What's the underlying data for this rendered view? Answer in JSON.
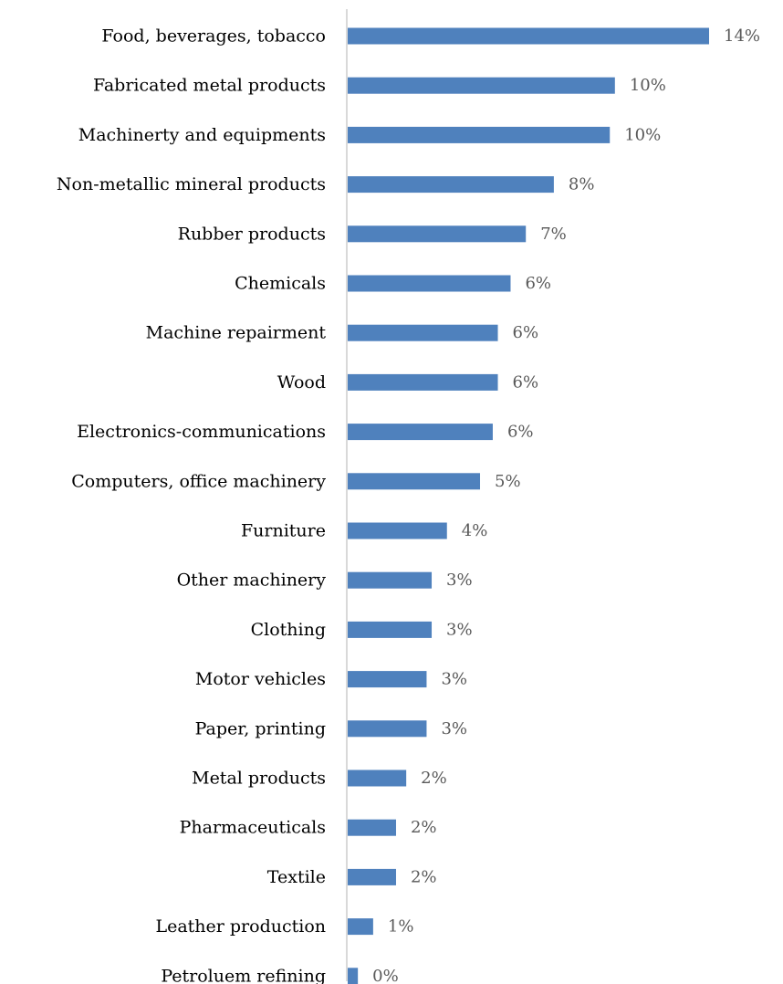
{
  "chart_data": {
    "type": "bar",
    "orientation": "horizontal",
    "categories": [
      "Food, beverages, tobacco",
      "Fabricated metal products",
      "Machinerty and equipments",
      "Non-metallic mineral products",
      "Rubber products",
      "Chemicals",
      "Machine repairment",
      "Wood",
      "Electronics-communications",
      "Computers, office machinery",
      "Furniture",
      "Other machinery",
      "Clothing",
      "Motor vehicles",
      "Paper, printing",
      "Metal products",
      "Pharmaceuticals",
      "Textile",
      "Leather production",
      "Petroluem refining"
    ],
    "values": [
      14.2,
      10.5,
      10.3,
      8.1,
      7.0,
      6.4,
      5.9,
      5.9,
      5.7,
      5.2,
      3.9,
      3.3,
      3.3,
      3.1,
      3.1,
      2.3,
      1.9,
      1.9,
      1.0,
      0.4
    ],
    "data_labels": [
      "14%",
      "10%",
      "10%",
      "8%",
      "7%",
      "6%",
      "6%",
      "6%",
      "6%",
      "5%",
      "4%",
      "3%",
      "3%",
      "3%",
      "3%",
      "2%",
      "2%",
      "2%",
      "1%",
      "0%"
    ],
    "value_unit": "%",
    "xlim": [
      0,
      14.2
    ],
    "grid": false,
    "legend": "none",
    "colors": {
      "bar": "#4f81bd",
      "axis": "#d9d9d9",
      "category_text": "#000000",
      "value_text": "#595959"
    }
  }
}
